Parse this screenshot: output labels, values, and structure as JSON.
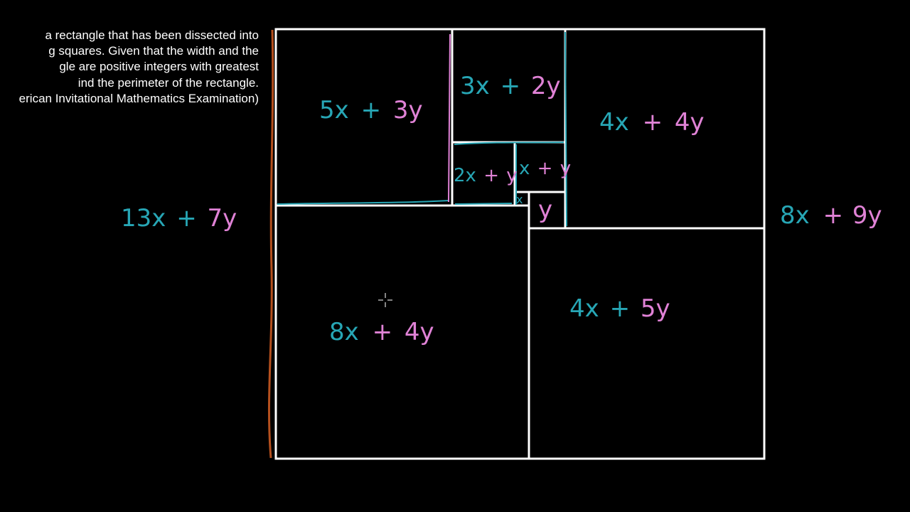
{
  "problem": {
    "lines": [
      "a rectangle that has been dissected into",
      "g squares.  Given that the width and the",
      "gle are positive integers with greatest",
      "ind the perimeter of the rectangle.",
      "erican Invitational Mathematics Examination)"
    ]
  },
  "side_labels": {
    "left": {
      "x_part": "13x",
      "op": "+",
      "y_part": "7y"
    },
    "right": {
      "x_part": "8x",
      "op": "+",
      "y_part": "9y"
    }
  },
  "squares": {
    "top_left": {
      "x_part": "5x",
      "op": "+",
      "y_part": "3y"
    },
    "top_middle": {
      "x_part": "3x",
      "op": "+",
      "y_part": "2y"
    },
    "top_right": {
      "x_part": "4x",
      "op": "+",
      "y_part": "4y"
    },
    "middle_a": {
      "x_part": "2x",
      "op": "+",
      "y_part": "y"
    },
    "middle_b": {
      "x_part": "x",
      "op": "+",
      "y_part": "y"
    },
    "tiny": {
      "x_part": "x"
    },
    "small_y": {
      "y_part": "y"
    },
    "bottom_left": {
      "x_part": "8x",
      "op": "+",
      "y_part": "4y"
    },
    "bottom_right": {
      "x_part": "4x",
      "op": "+",
      "y_part": "5y"
    }
  },
  "colors": {
    "background": "#000000",
    "text": "#ffffff",
    "x_terms": "#27a6b5",
    "y_terms": "#e082d6",
    "outline": "#ffffff",
    "brace": "#b5501e"
  }
}
